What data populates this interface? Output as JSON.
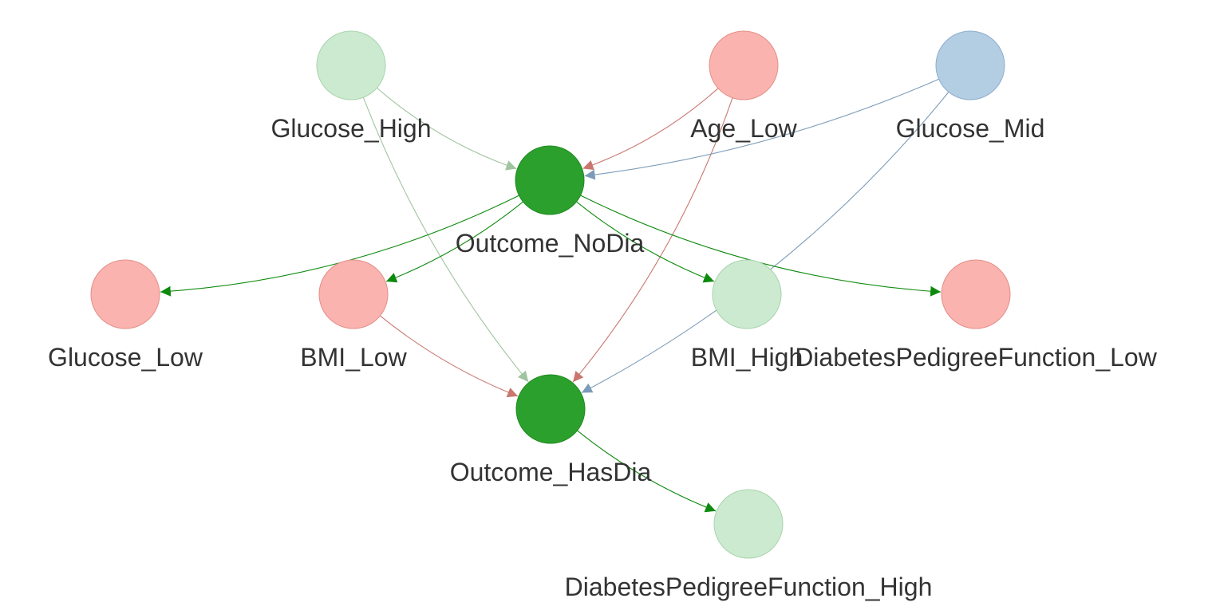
{
  "colors": {
    "green_light": "#ccead0",
    "green_light_stroke": "#a8d4ad",
    "green_dark": "#2ca02c",
    "green_dark_stroke": "#1f8a1f",
    "red_light": "#fab3ae",
    "red_light_stroke": "#e48f89",
    "blue_light": "#b3cde3",
    "blue_light_stroke": "#8eaecb",
    "edge_green_light": "#9fc49f",
    "edge_red": "#c9776f",
    "edge_blue": "#7c9bb8",
    "edge_green_dark": "#0d8a0d",
    "label_text": "#333333"
  },
  "nodes": [
    {
      "id": "Glucose_High",
      "label": "Glucose_High",
      "color": "green_light"
    },
    {
      "id": "Age_Low",
      "label": "Age_Low",
      "color": "red_light"
    },
    {
      "id": "Glucose_Mid",
      "label": "Glucose_Mid",
      "color": "blue_light"
    },
    {
      "id": "Outcome_NoDia",
      "label": "Outcome_NoDia",
      "color": "green_dark"
    },
    {
      "id": "Glucose_Low",
      "label": "Glucose_Low",
      "color": "red_light"
    },
    {
      "id": "BMI_Low",
      "label": "BMI_Low",
      "color": "red_light"
    },
    {
      "id": "BMI_High",
      "label": "BMI_High",
      "color": "green_light"
    },
    {
      "id": "DiabetesPedigreeFunction_Low",
      "label": "DiabetesPedigreeFunction_Low",
      "color": "red_light"
    },
    {
      "id": "Outcome_HasDia",
      "label": "Outcome_HasDia",
      "color": "green_dark"
    },
    {
      "id": "DiabetesPedigreeFunction_High",
      "label": "DiabetesPedigreeFunction_High",
      "color": "green_light"
    }
  ],
  "edges": [
    {
      "from": "Glucose_High",
      "to": "Outcome_NoDia",
      "color": "edge_green_light"
    },
    {
      "from": "Glucose_High",
      "to": "Outcome_HasDia",
      "color": "edge_green_light"
    },
    {
      "from": "Age_Low",
      "to": "Outcome_NoDia",
      "color": "edge_red"
    },
    {
      "from": "Age_Low",
      "to": "Outcome_HasDia",
      "color": "edge_red"
    },
    {
      "from": "Glucose_Mid",
      "to": "Outcome_NoDia",
      "color": "edge_blue"
    },
    {
      "from": "Glucose_Mid",
      "to": "Outcome_HasDia",
      "color": "edge_blue"
    },
    {
      "from": "Outcome_NoDia",
      "to": "Glucose_Low",
      "color": "edge_green_dark"
    },
    {
      "from": "Outcome_NoDia",
      "to": "BMI_Low",
      "color": "edge_green_dark"
    },
    {
      "from": "Outcome_NoDia",
      "to": "BMI_High",
      "color": "edge_green_dark"
    },
    {
      "from": "Outcome_NoDia",
      "to": "DiabetesPedigreeFunction_Low",
      "color": "edge_green_dark"
    },
    {
      "from": "BMI_Low",
      "to": "Outcome_HasDia",
      "color": "edge_red"
    },
    {
      "from": "Outcome_HasDia",
      "to": "DiabetesPedigreeFunction_High",
      "color": "edge_green_dark"
    }
  ]
}
